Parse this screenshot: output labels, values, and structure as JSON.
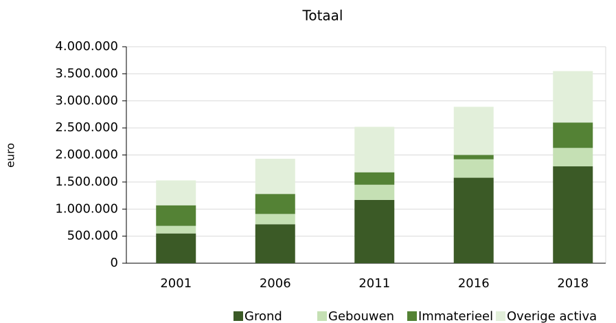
{
  "chart_data": {
    "type": "stacked_bar",
    "title": "Totaal",
    "y_label": "euro",
    "categories": [
      "2001",
      "2006",
      "2011",
      "2016",
      "2018"
    ],
    "series": [
      {
        "name": "Grond",
        "color": "#3b5a26",
        "values": [
          550000,
          720000,
          1170000,
          1580000,
          1790000
        ]
      },
      {
        "name": "Gebouwen",
        "color": "#c5e0b4",
        "values": [
          140000,
          190000,
          280000,
          340000,
          340000
        ]
      },
      {
        "name": "Immaterieel",
        "color": "#548235",
        "values": [
          380000,
          370000,
          230000,
          80000,
          470000
        ]
      },
      {
        "name": "Overige activa",
        "color": "#e2efda",
        "values": [
          460000,
          650000,
          840000,
          890000,
          950000
        ]
      }
    ],
    "ylim": [
      0,
      4000000
    ],
    "yticks": [
      0,
      {
        "value": 500000,
        "label": "500.000"
      },
      {
        "value": 1000000,
        "label": "1.000.000"
      },
      {
        "value": 1500000,
        "label": "1.500.000"
      },
      {
        "value": 2000000,
        "label": "2.000.000"
      },
      {
        "value": 2500000,
        "label": "2.500.000"
      },
      {
        "value": 3000000,
        "label": "3.000.000"
      },
      {
        "value": 3500000,
        "label": "3.500.000"
      },
      {
        "value": 4000000,
        "label": "4.000.000"
      }
    ],
    "grid": true,
    "legend": "bottom"
  }
}
